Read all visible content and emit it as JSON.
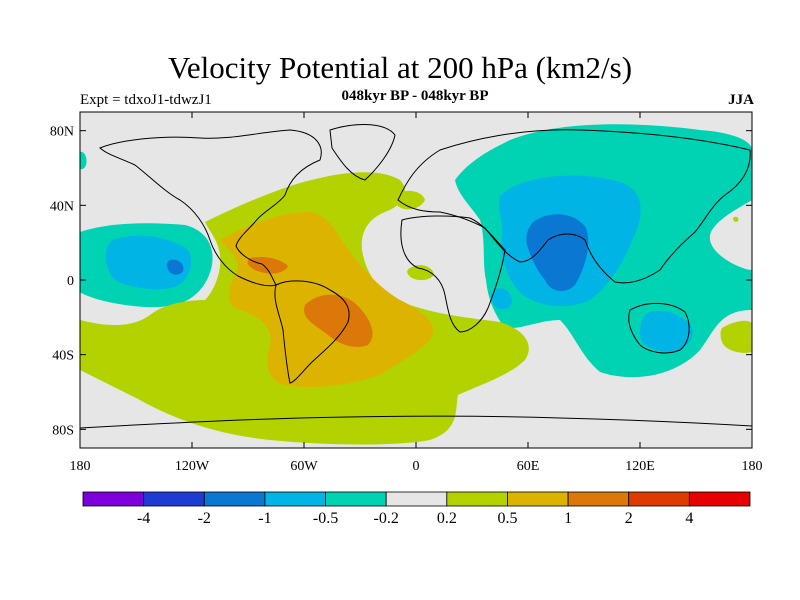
{
  "title": "Velocity Potential at 200 hPa (km2/s)",
  "experiment": "Expt = tdxoJ1-tdwzJ1",
  "subtitle": "048kyr BP - 048kyr BP",
  "season": "JJA",
  "map": {
    "projection": "cylindrical equidistant",
    "background_color": "#e6e6e6",
    "lat_range": [
      -90,
      90
    ],
    "lon_range": [
      -180,
      180
    ],
    "lat_tick_labels": [
      "80N",
      "40N",
      "0",
      "40S",
      "80S"
    ],
    "lat_tick_values": [
      80,
      40,
      0,
      -40,
      -80
    ],
    "lon_tick_labels": [
      "180",
      "120W",
      "60W",
      "0",
      "60E",
      "120E",
      "180"
    ],
    "lon_tick_values": [
      -180,
      -120,
      -60,
      0,
      60,
      120,
      180
    ]
  },
  "colorbar": {
    "colors": [
      "#7d00dc",
      "#1e3cd2",
      "#0a78d2",
      "#00b4e6",
      "#00d2b4",
      "#e6e6e6",
      "#b4d200",
      "#dcb400",
      "#dc780a",
      "#dc3c00",
      "#e60000"
    ],
    "labels": [
      "-4",
      "-2",
      "-1",
      "-0.5",
      "-0.2",
      "0.2",
      "0.5",
      "1",
      "2",
      "4"
    ]
  },
  "chart_data": {
    "type": "heatmap",
    "title": "Velocity Potential at 200 hPa (km2/s)",
    "levels": [
      -4,
      -2,
      -1,
      -0.5,
      -0.2,
      0.2,
      0.5,
      1,
      2,
      4
    ],
    "regions": [
      {
        "area": "Eastern Hemisphere / Asia-Indian Ocean-Australia",
        "range": "-0.5 to -0.2"
      },
      {
        "area": "South Asia / Indian Ocean core",
        "range": "-2 to -1"
      },
      {
        "area": "Central-east Pacific near equator",
        "range": "-1 to -0.5"
      },
      {
        "area": "Central/South America and South Atlantic",
        "range": "0.2 to 1"
      },
      {
        "area": "Southern South America core",
        "range": "1 to 2"
      },
      {
        "area": "Southern Ocean",
        "range": "0.2 to 0.5"
      }
    ]
  }
}
